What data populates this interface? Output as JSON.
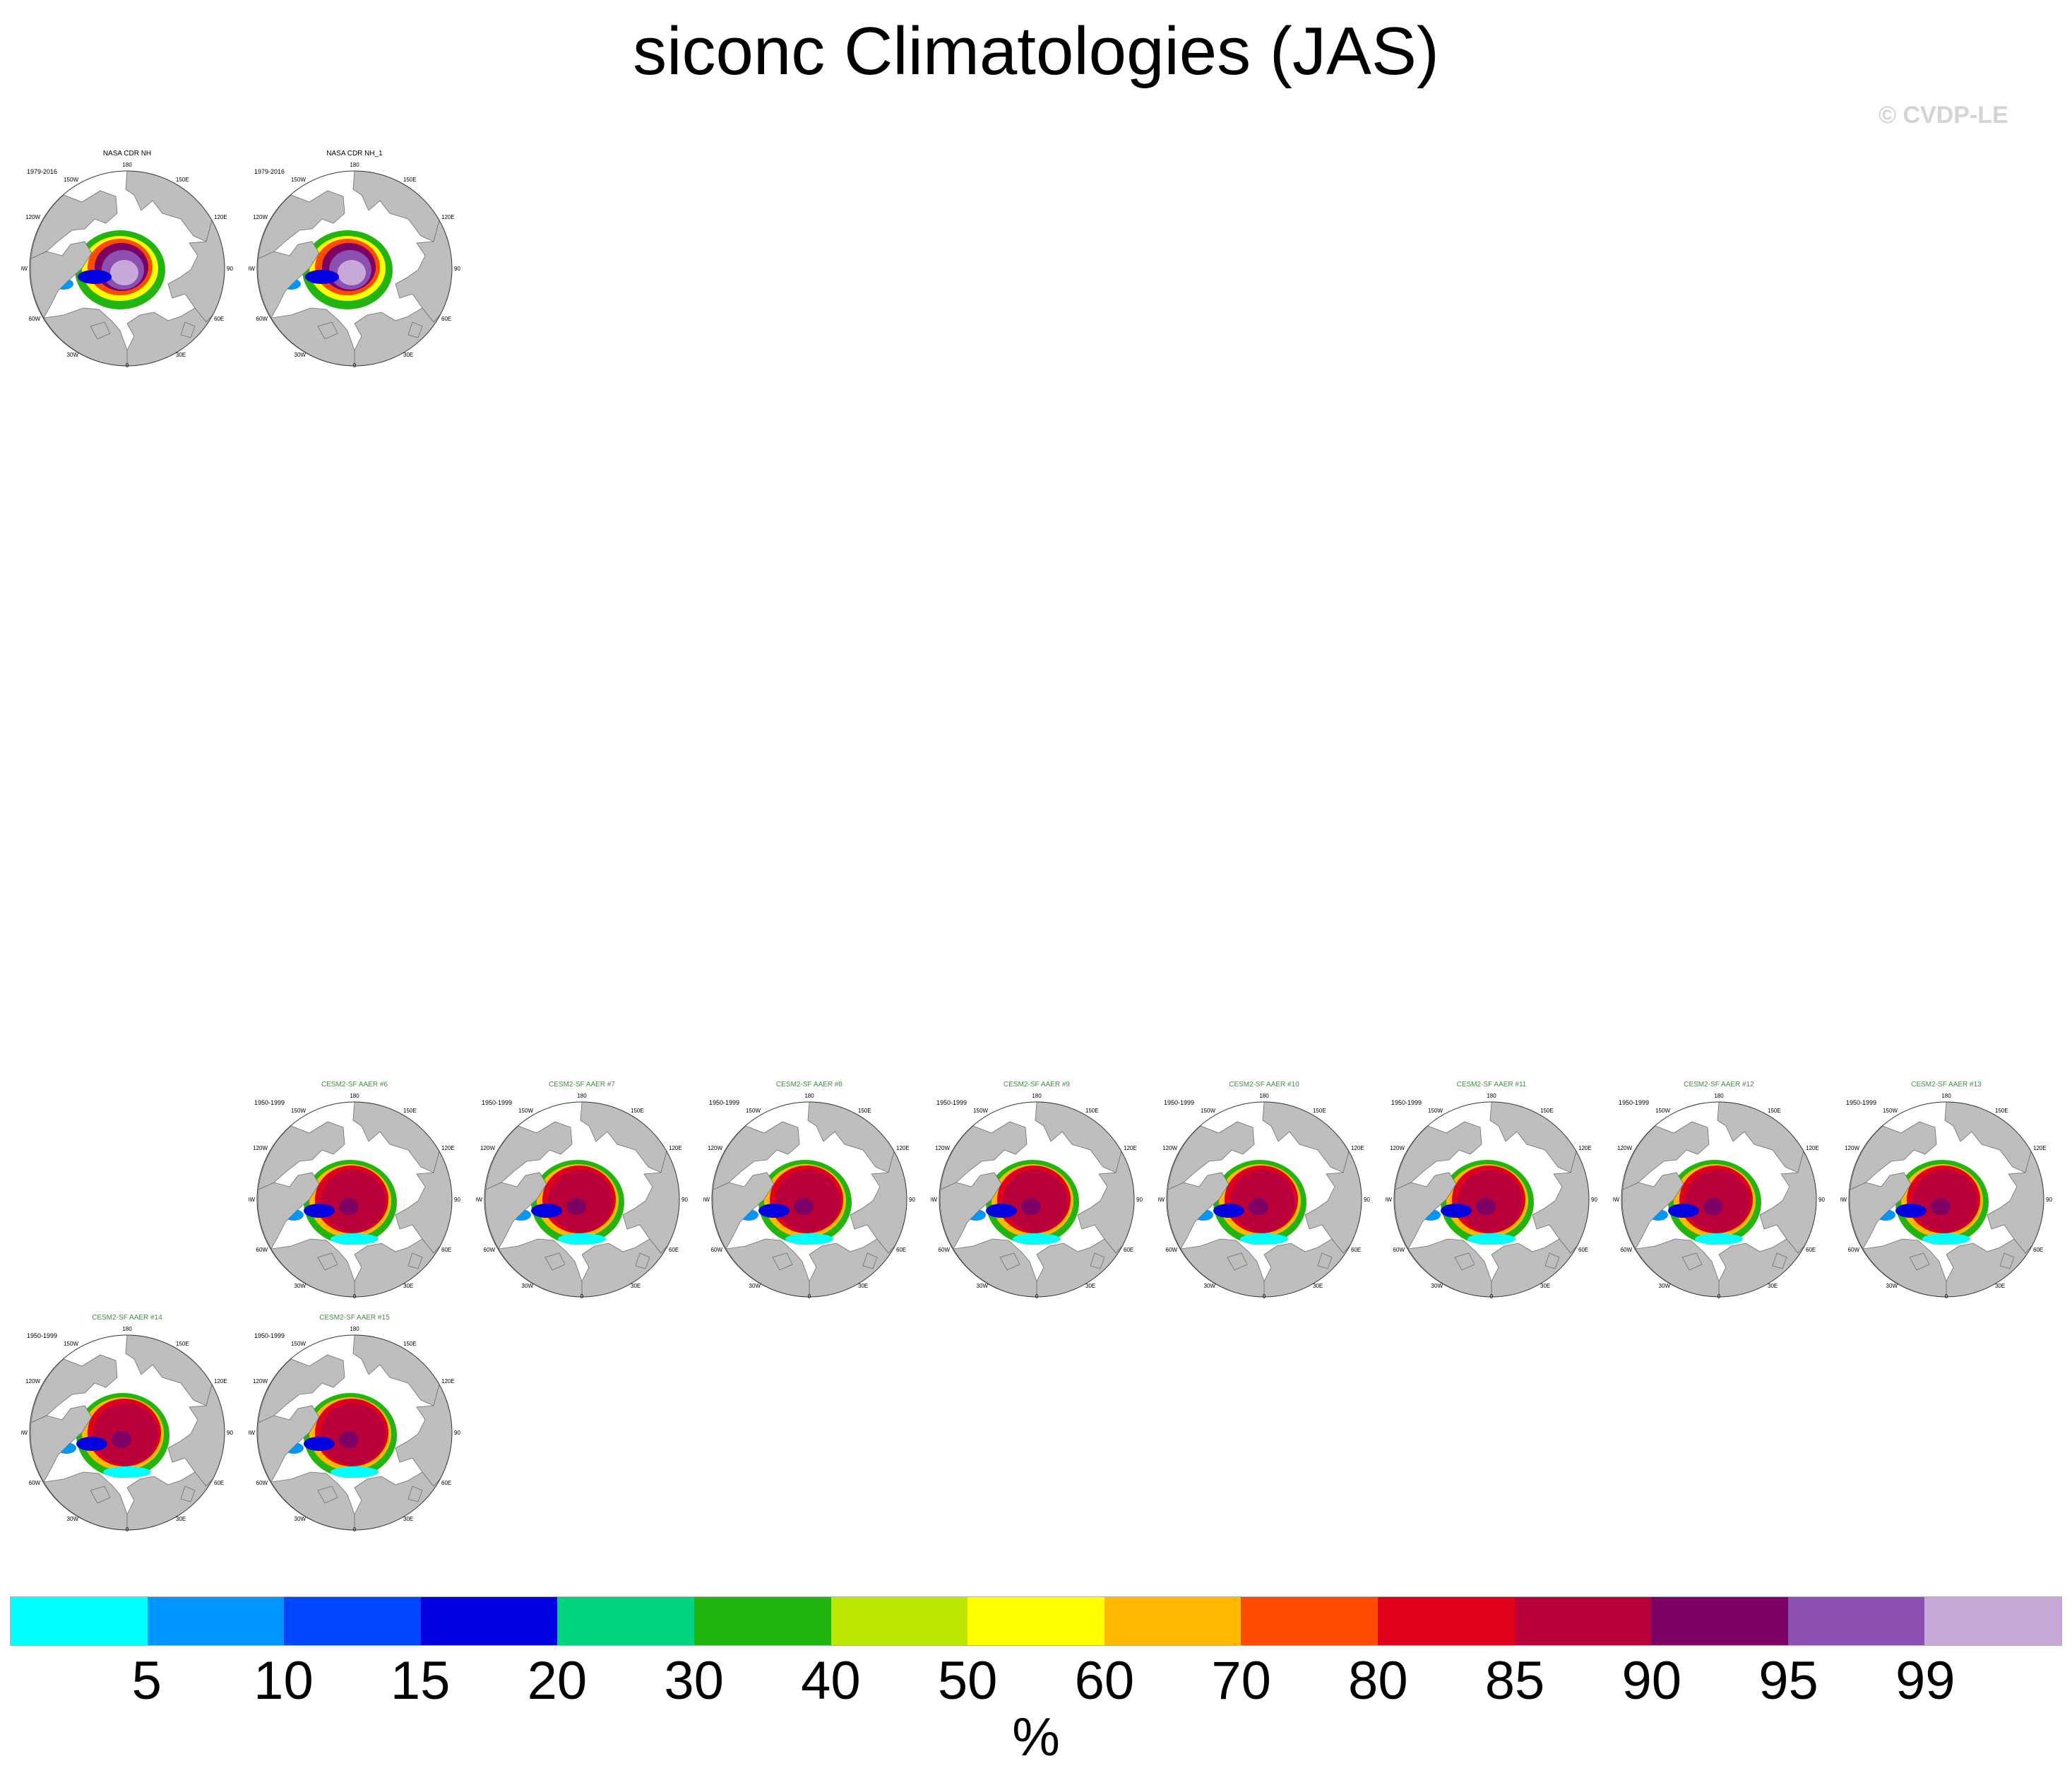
{
  "title": "siconc Climatologies (JAS)",
  "copyright": "© CVDP-LE",
  "panels": [
    {
      "name": "NASA CDR NH",
      "period": "1979-2016",
      "kind": "obs",
      "title_color": "#000000"
    },
    {
      "name": "NASA CDR NH_1",
      "period": "1979-2016",
      "kind": "obs",
      "title_color": "#000000"
    },
    {
      "name": "CESM2-SF AAER #6",
      "period": "1950-1999",
      "kind": "model",
      "title_color": "#3f8f3f"
    },
    {
      "name": "CESM2-SF AAER #7",
      "period": "1950-1999",
      "kind": "model",
      "title_color": "#3f8f3f"
    },
    {
      "name": "CESM2-SF AAER #8",
      "period": "1950-1999",
      "kind": "model",
      "title_color": "#3f8f3f"
    },
    {
      "name": "CESM2-SF AAER #9",
      "period": "1950-1999",
      "kind": "model",
      "title_color": "#3f8f3f"
    },
    {
      "name": "CESM2-SF AAER #10",
      "period": "1950-1999",
      "kind": "model",
      "title_color": "#3f8f3f"
    },
    {
      "name": "CESM2-SF AAER #11",
      "period": "1950-1999",
      "kind": "model",
      "title_color": "#3f8f3f"
    },
    {
      "name": "CESM2-SF AAER #12",
      "period": "1950-1999",
      "kind": "model",
      "title_color": "#3f8f3f"
    },
    {
      "name": "CESM2-SF AAER #13",
      "period": "1950-1999",
      "kind": "model",
      "title_color": "#3f8f3f"
    },
    {
      "name": "CESM2-SF AAER #14",
      "period": "1950-1999",
      "kind": "model",
      "title_color": "#3f8f3f"
    },
    {
      "name": "CESM2-SF AAER #15",
      "period": "1950-1999",
      "kind": "model",
      "title_color": "#3f8f3f"
    }
  ],
  "map_labels": {
    "top": "180",
    "bottom": "0",
    "upper_left": "150W",
    "upper_right": "150E",
    "mid_upper_left": "120W",
    "mid_upper_right": "120E",
    "left": "90W",
    "right": "90E",
    "mid_lower_left": "60W",
    "mid_lower_right": "60E",
    "lower_left": "30W",
    "lower_right": "30E"
  },
  "colorbar": {
    "colors": [
      "#00ffff",
      "#0096ff",
      "#0046ff",
      "#0000e1",
      "#00d27d",
      "#22b40f",
      "#bbe700",
      "#ffff00",
      "#ffb900",
      "#ff4a00",
      "#e1001a",
      "#b9003b",
      "#7d0065",
      "#8b50b0",
      "#c8a8d8"
    ],
    "labels": [
      "5",
      "10",
      "15",
      "20",
      "30",
      "40",
      "50",
      "60",
      "70",
      "80",
      "85",
      "90",
      "95",
      "99"
    ],
    "units": "%"
  }
}
